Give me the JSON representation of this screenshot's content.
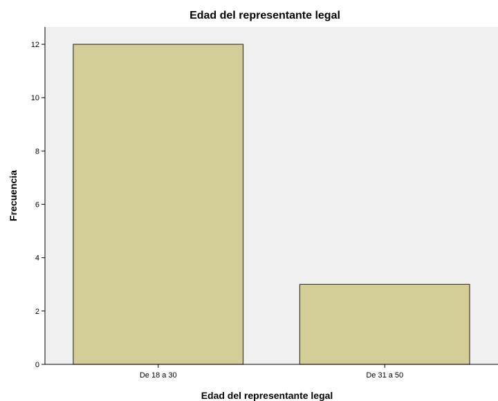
{
  "chart_data": {
    "type": "bar",
    "title": "Edad del representante legal",
    "xlabel": "Edad del representante legal",
    "ylabel": "Frecuencia",
    "categories": [
      "De 18 a 30",
      "De 31 a 50"
    ],
    "values": [
      12,
      3
    ],
    "ylim": [
      0,
      12.65
    ],
    "yticks": [
      0,
      2,
      4,
      6,
      8,
      10,
      12
    ],
    "grid": false,
    "legend": "none",
    "colors": {
      "bar_fill": "#d3cd98",
      "bar_stroke": "#3d3a2a",
      "plot_background": "#f0f0f0",
      "axis": "#000000"
    }
  }
}
